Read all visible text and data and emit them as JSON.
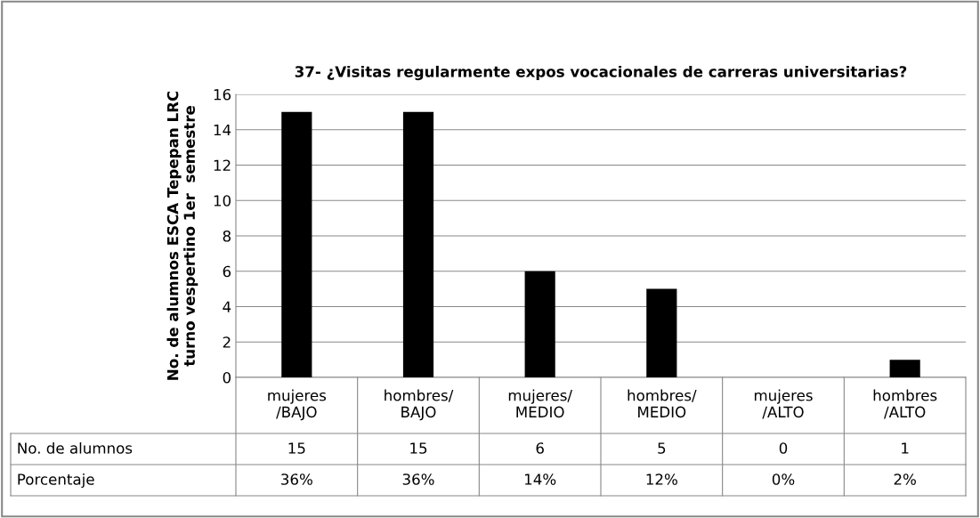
{
  "chart_data": {
    "type": "bar",
    "title": "37- ¿Visitas regularmente expos vocacionales de carreras universitarias?",
    "ylabel": "No. de alumnos ESCA Tepepan LRC\nturno vespertino 1er  semestre",
    "categories": [
      "mujeres\n/BAJO",
      "hombres/\nBAJO",
      "mujeres/\nMEDIO",
      "hombres/\nMEDIO",
      "mujeres\n/ALTO",
      "hombres\n/ALTO"
    ],
    "series": [
      {
        "name": "No. de alumnos",
        "colors": [
          "#000000",
          "#000000",
          "#000000",
          "#000000",
          "#000000",
          "#000000"
        ],
        "values": [
          15,
          15,
          6,
          5,
          0,
          1
        ]
      }
    ],
    "data_labels": true,
    "value_labels": [
      "36%",
      "36%",
      "14%",
      "12%",
      "0%",
      "2%"
    ],
    "annotations": [
      "Porcentaje"
    ],
    "ylim": [
      0,
      16
    ],
    "yticks": [
      0,
      2,
      4,
      6,
      8,
      10,
      12,
      14,
      16
    ],
    "grid": "y"
  }
}
